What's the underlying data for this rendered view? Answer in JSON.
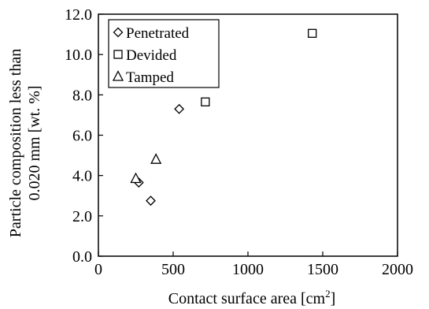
{
  "chart_data": {
    "type": "scatter",
    "xlabel": "Contact surface area [cm",
    "xlabel_sup": "2",
    "xlabel_suffix": "]",
    "ylabel_line1": "Particle composition less than",
    "ylabel_line2": "0.020 mm [wt. %]",
    "xlim": [
      0,
      2000
    ],
    "ylim": [
      0,
      12
    ],
    "xticks": [
      0,
      500,
      1000,
      1500,
      2000
    ],
    "xtick_labels": [
      "0",
      "500",
      "1000",
      "1500",
      "2000"
    ],
    "yticks": [
      0,
      2,
      4,
      6,
      8,
      10,
      12
    ],
    "ytick_labels": [
      "0.0",
      "2.0",
      "4.0",
      "6.0",
      "8.0",
      "10.0",
      "12.0"
    ],
    "grid": false,
    "legend_position": "top-left",
    "series": [
      {
        "name": "Penetrated",
        "marker": "diamond",
        "points": [
          {
            "x": 270,
            "y": 3.65
          },
          {
            "x": 350,
            "y": 2.75
          },
          {
            "x": 540,
            "y": 7.3
          }
        ]
      },
      {
        "name": "Devided",
        "marker": "square",
        "points": [
          {
            "x": 715,
            "y": 7.65
          },
          {
            "x": 1430,
            "y": 11.05
          }
        ]
      },
      {
        "name": "Tamped",
        "marker": "triangle",
        "points": [
          {
            "x": 250,
            "y": 3.85
          },
          {
            "x": 385,
            "y": 4.8
          }
        ]
      }
    ]
  }
}
